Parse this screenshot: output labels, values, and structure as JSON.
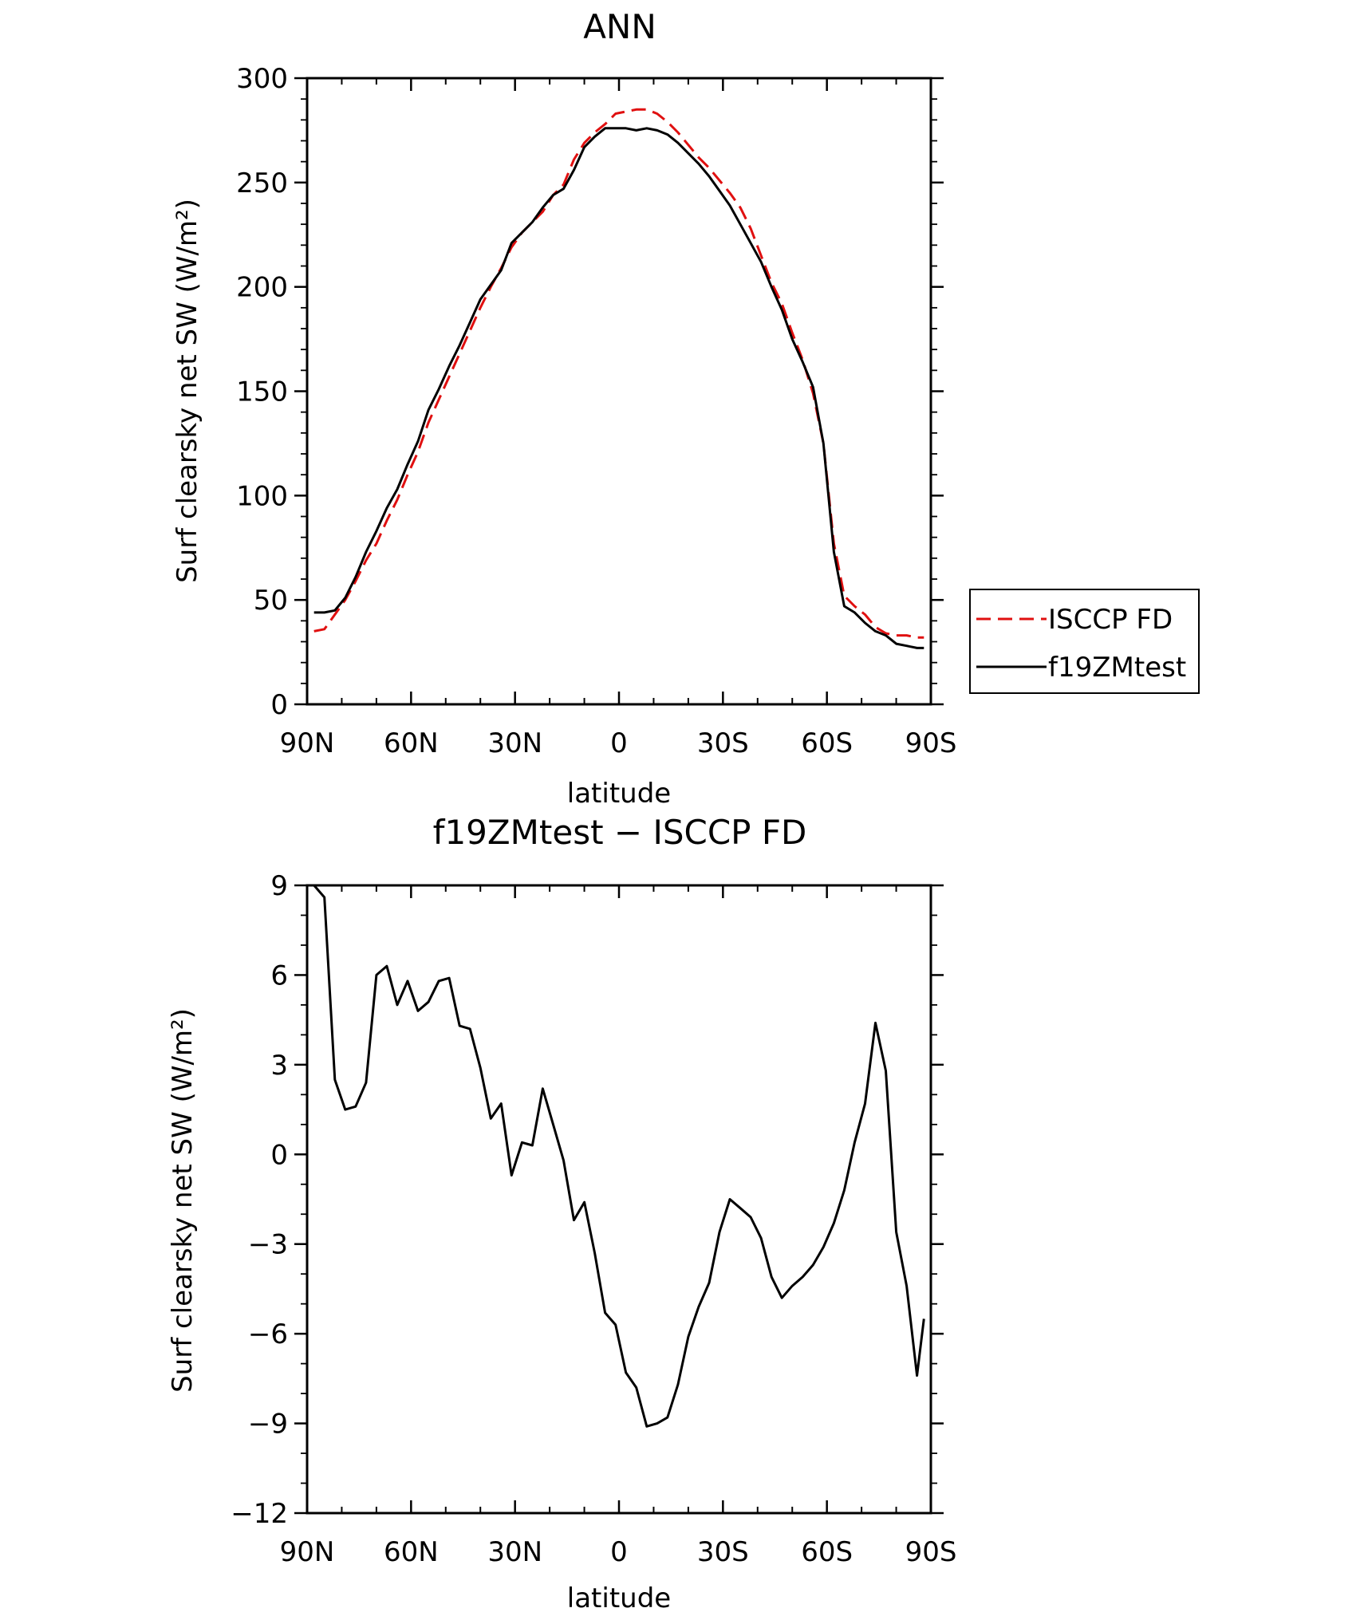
{
  "chart_data": [
    {
      "type": "line",
      "title": "ANN",
      "xlabel": "latitude",
      "ylabel": "Surf clearsky net SW (W/m²)",
      "xlim": [
        90,
        -90
      ],
      "ylim": [
        0,
        300
      ],
      "xticks": [
        90,
        60,
        30,
        0,
        -30,
        -60,
        -90
      ],
      "xtick_labels": [
        "90N",
        "60N",
        "30N",
        "0",
        "30S",
        "60S",
        "90S"
      ],
      "yticks": [
        0,
        50,
        100,
        150,
        200,
        250,
        300
      ],
      "ytick_labels": [
        "0",
        "50",
        "100",
        "150",
        "200",
        "250",
        "300"
      ],
      "grid": false,
      "legend_placement": "right",
      "series": [
        {
          "name": "ISCCP FD",
          "color": "#e01010",
          "dash": "dashed",
          "x": [
            88,
            85,
            82,
            79,
            76,
            73,
            70,
            67,
            64,
            61,
            58,
            55,
            52,
            49,
            46,
            43,
            40,
            37,
            34,
            31,
            28,
            25,
            22,
            19,
            16,
            13,
            10,
            7,
            4,
            1,
            -2,
            -5,
            -8,
            -11,
            -14,
            -17,
            -20,
            -23,
            -26,
            -29,
            -32,
            -35,
            -38,
            -41,
            -44,
            -47,
            -50,
            -53,
            -56,
            -59,
            -62,
            -65,
            -68,
            -71,
            -74,
            -77,
            -80,
            -83,
            -86,
            -88
          ],
          "y": [
            35,
            36,
            43,
            50,
            59,
            69,
            77,
            88,
            98,
            110,
            121,
            135,
            146,
            157,
            168,
            179,
            190,
            200,
            209,
            219,
            226,
            231,
            236,
            244,
            249,
            261,
            269,
            274,
            278,
            283,
            284,
            285,
            285,
            283,
            279,
            274,
            268,
            262,
            257,
            251,
            245,
            238,
            228,
            215,
            202,
            192,
            178,
            165,
            149,
            125,
            77,
            52,
            47,
            43,
            37,
            34,
            33,
            33,
            32,
            32
          ]
        },
        {
          "name": "f19ZMtest",
          "color": "#000000",
          "dash": "solid",
          "x": [
            88,
            85,
            82,
            79,
            76,
            73,
            70,
            67,
            64,
            61,
            58,
            55,
            52,
            49,
            46,
            43,
            40,
            37,
            34,
            31,
            28,
            25,
            22,
            19,
            16,
            13,
            10,
            7,
            4,
            1,
            -2,
            -5,
            -8,
            -11,
            -14,
            -17,
            -20,
            -23,
            -26,
            -29,
            -32,
            -35,
            -38,
            -41,
            -44,
            -47,
            -50,
            -53,
            -56,
            -59,
            -62,
            -65,
            -68,
            -71,
            -74,
            -77,
            -80,
            -83,
            -86,
            -88
          ],
          "y": [
            44,
            44,
            45,
            51,
            61,
            73,
            83,
            94,
            103,
            115,
            126,
            141,
            151,
            162,
            172,
            183,
            194,
            201,
            208,
            221,
            226,
            231,
            238,
            244,
            247,
            256,
            267,
            272,
            276,
            276,
            276,
            275,
            276,
            275,
            273,
            269,
            264,
            259,
            253,
            246,
            239,
            230,
            221,
            212,
            200,
            189,
            175,
            164,
            152,
            125,
            73,
            47,
            44,
            39,
            35,
            33,
            29,
            28,
            27,
            27
          ]
        }
      ]
    },
    {
      "type": "line",
      "title": "f19ZMtest − ISCCP FD",
      "xlabel": "latitude",
      "ylabel": "Surf clearsky net SW (W/m²)",
      "xlim": [
        90,
        -90
      ],
      "ylim": [
        -12,
        9
      ],
      "xticks": [
        90,
        60,
        30,
        0,
        -30,
        -60,
        -90
      ],
      "xtick_labels": [
        "90N",
        "60N",
        "30N",
        "0",
        "30S",
        "60S",
        "90S"
      ],
      "yticks": [
        -12,
        -9,
        -6,
        -3,
        0,
        3,
        6,
        9
      ],
      "ytick_labels": [
        "−12",
        "−9",
        "−6",
        "−3",
        "0",
        "3",
        "6",
        "9"
      ],
      "grid": false,
      "series": [
        {
          "color": "#000000",
          "dash": "solid",
          "x": [
            88,
            85,
            82,
            79,
            76,
            73,
            70,
            67,
            64,
            61,
            58,
            55,
            52,
            49,
            46,
            43,
            40,
            37,
            34,
            31,
            28,
            25,
            22,
            19,
            16,
            13,
            10,
            7,
            4,
            1,
            -2,
            -5,
            -8,
            -11,
            -14,
            -17,
            -20,
            -23,
            -26,
            -29,
            -32,
            -35,
            -38,
            -41,
            -44,
            -47,
            -50,
            -53,
            -56,
            -59,
            -62,
            -65,
            -68,
            -71,
            -74,
            -77,
            -80,
            -83,
            -86,
            -88
          ],
          "y": [
            9.0,
            8.6,
            2.5,
            1.5,
            1.6,
            2.4,
            6.0,
            6.3,
            5.0,
            5.8,
            4.8,
            5.1,
            5.8,
            5.9,
            4.3,
            4.2,
            2.9,
            1.2,
            1.7,
            -0.7,
            0.4,
            0.3,
            2.2,
            1.0,
            -0.2,
            -2.2,
            -1.6,
            -3.3,
            -5.3,
            -5.7,
            -7.3,
            -7.8,
            -9.1,
            -9.0,
            -8.8,
            -7.7,
            -6.1,
            -5.1,
            -4.3,
            -2.6,
            -1.5,
            -1.8,
            -2.1,
            -2.8,
            -4.1,
            -4.8,
            -4.4,
            -4.1,
            -3.7,
            -3.1,
            -2.3,
            -1.2,
            0.4,
            1.7,
            4.4,
            2.8,
            -2.6,
            -4.4,
            -7.4,
            -5.5
          ]
        }
      ]
    }
  ]
}
